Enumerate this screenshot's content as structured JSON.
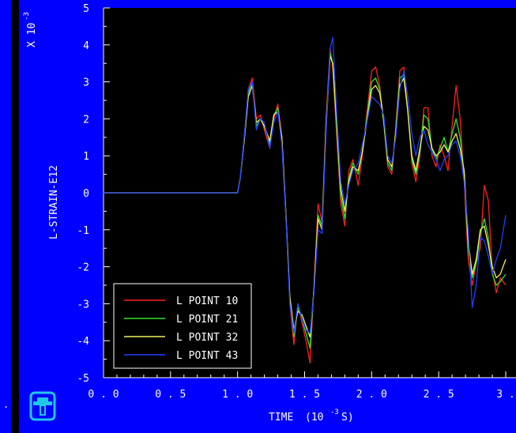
{
  "colors": {
    "frame_blue": "#0000ff",
    "plot_bg": "#000000",
    "axis_white": "#ffffff",
    "logo_cyan": "#20c8e8"
  },
  "left_panel_text": ".",
  "logo": {
    "icon": "sandia-thunderbird-logo"
  },
  "chart_data": {
    "type": "line",
    "xlabel_main": "TIME",
    "xlabel_unit": "(10",
    "xlabel_exp": "-3",
    "xlabel_tail": "S)",
    "ylabel": "L-STRAIN-E12",
    "y_multiplier_main": "X 10",
    "y_multiplier_exp": "-3",
    "xlim": [
      0.0,
      3.0
    ],
    "ylim": [
      -5,
      5
    ],
    "x_ticks": [
      "0.0",
      "0.5",
      "1.0",
      "1.5",
      "2.0",
      "2.5",
      "3."
    ],
    "y_ticks": [
      "5",
      "4",
      "3",
      "2",
      "1",
      "0",
      "-1",
      "-2",
      "-3",
      "-4",
      "-5"
    ],
    "legend_position": "bottom-left",
    "series": [
      {
        "name": "L POINT 10",
        "color": "#ff2020",
        "x": [
          0.0,
          1.0,
          1.02,
          1.05,
          1.08,
          1.11,
          1.14,
          1.17,
          1.2,
          1.24,
          1.27,
          1.3,
          1.33,
          1.36,
          1.39,
          1.42,
          1.45,
          1.48,
          1.51,
          1.54,
          1.57,
          1.6,
          1.63,
          1.66,
          1.69,
          1.71,
          1.74,
          1.77,
          1.8,
          1.83,
          1.86,
          1.9,
          1.93,
          1.96,
          2.0,
          2.03,
          2.06,
          2.09,
          2.12,
          2.15,
          2.18,
          2.21,
          2.24,
          2.27,
          2.3,
          2.33,
          2.36,
          2.39,
          2.42,
          2.45,
          2.48,
          2.51,
          2.54,
          2.57,
          2.6,
          2.63,
          2.66,
          2.69,
          2.72,
          2.75,
          2.78,
          2.81,
          2.84,
          2.87,
          2.9,
          2.93,
          2.96,
          3.0
        ],
        "y": [
          0,
          0,
          0.4,
          1.5,
          2.8,
          3.1,
          2.0,
          2.1,
          1.7,
          1.2,
          2.0,
          2.4,
          1.5,
          -0.5,
          -3.0,
          -4.1,
          -3.0,
          -3.5,
          -4.0,
          -4.6,
          -2.5,
          -0.3,
          -0.8,
          2.0,
          3.9,
          3.4,
          1.5,
          -0.3,
          -0.9,
          0.6,
          0.9,
          0.2,
          1.0,
          2.0,
          3.3,
          3.4,
          2.9,
          1.9,
          0.7,
          0.5,
          1.8,
          3.3,
          3.4,
          2.2,
          0.8,
          0.3,
          1.0,
          2.3,
          2.3,
          1.0,
          0.7,
          1.3,
          1.0,
          0.6,
          1.8,
          2.9,
          2.0,
          0.3,
          -1.8,
          -2.5,
          -1.9,
          -1.5,
          0.2,
          -0.2,
          -2.1,
          -2.7,
          -2.3,
          -2.5
        ]
      },
      {
        "name": "L POINT 21",
        "color": "#30e030",
        "x": [
          0.0,
          1.0,
          1.02,
          1.05,
          1.08,
          1.11,
          1.14,
          1.17,
          1.2,
          1.24,
          1.27,
          1.3,
          1.33,
          1.36,
          1.39,
          1.42,
          1.45,
          1.48,
          1.51,
          1.54,
          1.57,
          1.6,
          1.63,
          1.66,
          1.69,
          1.71,
          1.74,
          1.77,
          1.8,
          1.83,
          1.86,
          1.9,
          1.93,
          1.96,
          2.0,
          2.03,
          2.06,
          2.09,
          2.12,
          2.15,
          2.18,
          2.21,
          2.24,
          2.27,
          2.3,
          2.33,
          2.36,
          2.39,
          2.42,
          2.45,
          2.48,
          2.51,
          2.54,
          2.57,
          2.6,
          2.63,
          2.66,
          2.69,
          2.72,
          2.75,
          2.78,
          2.81,
          2.84,
          2.87,
          2.9,
          2.93,
          2.96,
          3.0
        ],
        "y": [
          0,
          0,
          0.4,
          1.5,
          2.7,
          3.0,
          1.8,
          2.0,
          1.8,
          1.3,
          2.1,
          2.3,
          1.4,
          -0.6,
          -2.9,
          -3.9,
          -3.1,
          -3.4,
          -3.8,
          -4.2,
          -2.6,
          -0.6,
          -0.9,
          1.8,
          3.8,
          3.5,
          1.7,
          -0.1,
          -0.7,
          0.4,
          0.8,
          0.5,
          1.1,
          1.9,
          3.0,
          3.1,
          2.8,
          1.9,
          0.8,
          0.6,
          1.7,
          3.1,
          3.2,
          2.2,
          0.9,
          0.5,
          1.1,
          2.1,
          2.0,
          1.2,
          0.9,
          1.2,
          1.5,
          1.1,
          1.6,
          2.0,
          1.5,
          0.5,
          -1.5,
          -2.3,
          -1.9,
          -1.1,
          -0.7,
          -1.2,
          -2.2,
          -2.5,
          -2.4,
          -2.2
        ]
      },
      {
        "name": "L POINT 32",
        "color": "#f0f060",
        "x": [
          0.0,
          1.0,
          1.02,
          1.05,
          1.08,
          1.11,
          1.14,
          1.17,
          1.2,
          1.24,
          1.27,
          1.3,
          1.33,
          1.36,
          1.39,
          1.42,
          1.45,
          1.48,
          1.51,
          1.54,
          1.57,
          1.6,
          1.63,
          1.66,
          1.69,
          1.71,
          1.74,
          1.77,
          1.8,
          1.83,
          1.86,
          1.9,
          1.93,
          1.96,
          2.0,
          2.03,
          2.06,
          2.09,
          2.12,
          2.15,
          2.18,
          2.21,
          2.24,
          2.27,
          2.3,
          2.33,
          2.36,
          2.39,
          2.42,
          2.45,
          2.48,
          2.51,
          2.54,
          2.57,
          2.6,
          2.63,
          2.66,
          2.69,
          2.72,
          2.75,
          2.78,
          2.81,
          2.84,
          2.87,
          2.9,
          2.93,
          2.96,
          3.0
        ],
        "y": [
          0,
          0,
          0.4,
          1.4,
          2.6,
          2.9,
          1.9,
          2.0,
          1.8,
          1.4,
          2.1,
          2.2,
          1.5,
          -0.5,
          -2.8,
          -3.7,
          -3.2,
          -3.3,
          -3.6,
          -3.9,
          -2.6,
          -0.7,
          -1.0,
          1.7,
          3.7,
          3.5,
          1.9,
          0.1,
          -0.5,
          0.3,
          0.7,
          0.6,
          1.1,
          1.8,
          2.8,
          2.9,
          2.7,
          2.0,
          0.9,
          0.7,
          1.6,
          2.9,
          3.1,
          2.2,
          1.0,
          0.6,
          1.2,
          1.8,
          1.7,
          1.2,
          1.0,
          1.1,
          1.3,
          1.1,
          1.4,
          1.6,
          1.2,
          0.6,
          -1.3,
          -2.2,
          -1.8,
          -1.0,
          -0.9,
          -1.4,
          -2.0,
          -2.3,
          -2.2,
          -1.8
        ]
      },
      {
        "name": "L POINT 43",
        "color": "#2040ff",
        "x": [
          0.0,
          1.0,
          1.02,
          1.05,
          1.08,
          1.11,
          1.14,
          1.17,
          1.2,
          1.24,
          1.27,
          1.3,
          1.33,
          1.36,
          1.39,
          1.42,
          1.45,
          1.48,
          1.51,
          1.54,
          1.57,
          1.6,
          1.63,
          1.66,
          1.69,
          1.71,
          1.74,
          1.77,
          1.8,
          1.83,
          1.86,
          1.9,
          1.93,
          1.96,
          2.0,
          2.03,
          2.06,
          2.09,
          2.12,
          2.15,
          2.18,
          2.21,
          2.24,
          2.27,
          2.3,
          2.33,
          2.36,
          2.39,
          2.42,
          2.45,
          2.48,
          2.51,
          2.54,
          2.57,
          2.6,
          2.63,
          2.66,
          2.69,
          2.72,
          2.75,
          2.78,
          2.81,
          2.84,
          2.87,
          2.9,
          2.93,
          2.96,
          3.0
        ],
        "y": [
          0,
          0,
          0.4,
          1.5,
          2.8,
          3.0,
          1.7,
          2.0,
          1.9,
          1.2,
          1.9,
          2.2,
          1.3,
          -0.6,
          -3.0,
          -3.8,
          -3.0,
          -3.4,
          -3.7,
          -3.8,
          -2.7,
          -1.0,
          -1.1,
          1.6,
          3.9,
          4.2,
          2.1,
          0.3,
          -0.3,
          0.2,
          0.6,
          0.8,
          1.3,
          1.8,
          2.6,
          2.5,
          2.4,
          2.1,
          1.0,
          0.8,
          1.5,
          2.8,
          3.3,
          2.6,
          1.6,
          1.0,
          1.5,
          1.7,
          1.3,
          1.1,
          0.9,
          0.6,
          0.9,
          1.0,
          1.3,
          1.4,
          1.0,
          0.3,
          -1.0,
          -3.1,
          -2.5,
          -1.2,
          -1.3,
          -1.7,
          -2.2,
          -1.8,
          -1.5,
          -0.6
        ]
      }
    ]
  }
}
